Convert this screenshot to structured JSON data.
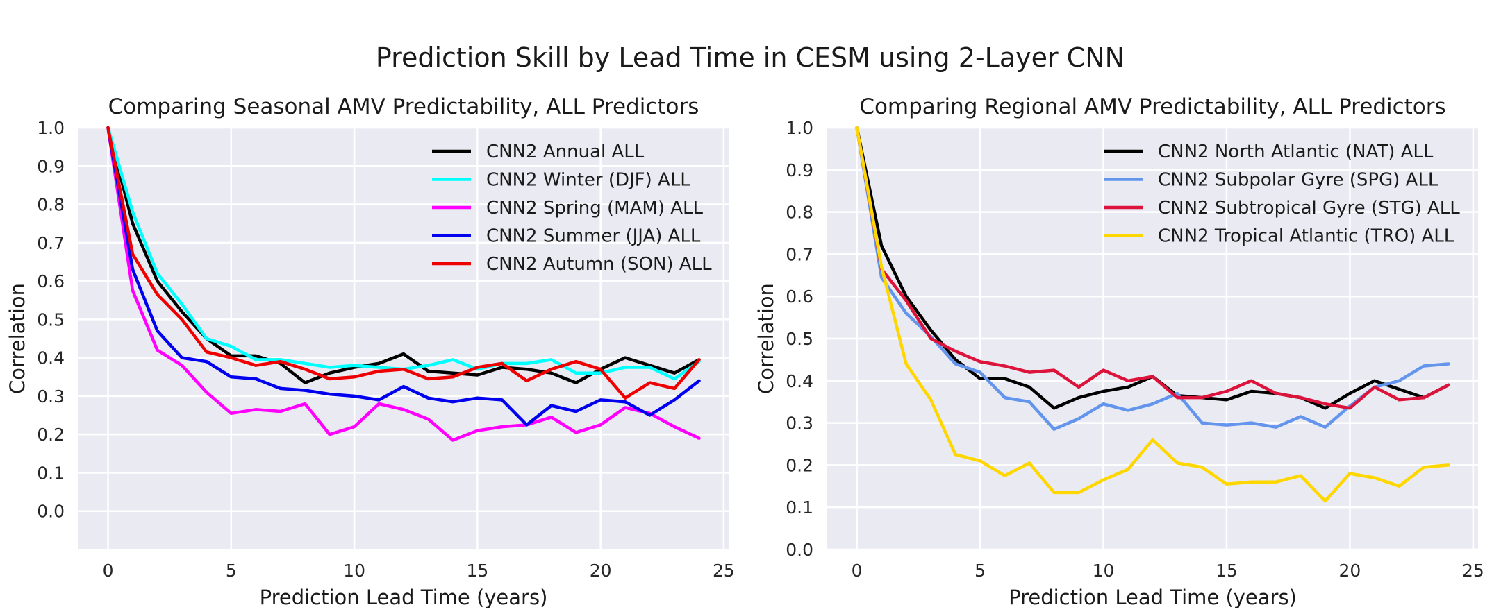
{
  "figure": {
    "suptitle": "Prediction Skill by Lead Time in CESM using 2-Layer CNN"
  },
  "chart_data": [
    {
      "type": "line",
      "title": "Comparing Seasonal AMV Predictability, ALL Predictors",
      "xlabel": "Prediction Lead Time (years)",
      "ylabel": "Correlation",
      "xlim": [
        -1.2,
        25.2
      ],
      "ylim": [
        -0.1,
        1.0
      ],
      "xticks": [
        0,
        5,
        10,
        15,
        20,
        25
      ],
      "yticks": [
        0.0,
        0.1,
        0.2,
        0.3,
        0.4,
        0.5,
        0.6,
        0.7,
        0.8,
        0.9,
        1.0
      ],
      "grid": true,
      "legend_position": "upper-right",
      "x": [
        0,
        1,
        2,
        3,
        4,
        5,
        6,
        7,
        8,
        9,
        10,
        11,
        12,
        13,
        14,
        15,
        16,
        17,
        18,
        19,
        20,
        21,
        22,
        23,
        24
      ],
      "series": [
        {
          "name": "CNN2 Annual ALL",
          "color": "#000000",
          "values": [
            1.0,
            0.75,
            0.6,
            0.52,
            0.45,
            0.405,
            0.405,
            0.385,
            0.335,
            0.36,
            0.375,
            0.385,
            0.41,
            0.365,
            0.36,
            0.355,
            0.375,
            0.37,
            0.36,
            0.335,
            0.37,
            0.4,
            0.38,
            0.36,
            0.395
          ]
        },
        {
          "name": "CNN2 Winter (DJF) ALL",
          "color": "#00ffff",
          "values": [
            1.0,
            0.78,
            0.62,
            0.54,
            0.45,
            0.43,
            0.395,
            0.395,
            0.385,
            0.375,
            0.38,
            0.375,
            0.37,
            0.38,
            0.395,
            0.37,
            0.385,
            0.385,
            0.395,
            0.36,
            0.36,
            0.375,
            0.375,
            0.345,
            0.39
          ]
        },
        {
          "name": "CNN2 Spring (MAM) ALL",
          "color": "#ff00ff",
          "values": [
            1.0,
            0.575,
            0.42,
            0.38,
            0.31,
            0.255,
            0.265,
            0.26,
            0.28,
            0.2,
            0.22,
            0.28,
            0.265,
            0.24,
            0.185,
            0.21,
            0.22,
            0.225,
            0.245,
            0.205,
            0.225,
            0.27,
            0.255,
            0.22,
            0.19
          ]
        },
        {
          "name": "CNN2 Summer (JJA) ALL",
          "color": "#0000ee",
          "values": [
            1.0,
            0.63,
            0.47,
            0.4,
            0.39,
            0.35,
            0.345,
            0.32,
            0.315,
            0.305,
            0.3,
            0.29,
            0.325,
            0.295,
            0.285,
            0.295,
            0.29,
            0.225,
            0.275,
            0.26,
            0.29,
            0.285,
            0.25,
            0.29,
            0.34
          ]
        },
        {
          "name": "CNN2 Autumn (SON) ALL",
          "color": "#ee0000",
          "values": [
            1.0,
            0.67,
            0.565,
            0.5,
            0.415,
            0.4,
            0.38,
            0.39,
            0.37,
            0.345,
            0.35,
            0.365,
            0.37,
            0.345,
            0.35,
            0.375,
            0.385,
            0.34,
            0.37,
            0.39,
            0.37,
            0.295,
            0.335,
            0.32,
            0.395
          ]
        }
      ]
    },
    {
      "type": "line",
      "title": "Comparing Regional AMV Predictability, ALL Predictors",
      "xlabel": "Prediction Lead Time (years)",
      "ylabel": "Correlation",
      "xlim": [
        -1.2,
        25.2
      ],
      "ylim": [
        0.0,
        1.0
      ],
      "xticks": [
        0,
        5,
        10,
        15,
        20,
        25
      ],
      "yticks": [
        0.0,
        0.1,
        0.2,
        0.3,
        0.4,
        0.5,
        0.6,
        0.7,
        0.8,
        0.9,
        1.0
      ],
      "grid": true,
      "legend_position": "upper-right",
      "x": [
        0,
        1,
        2,
        3,
        4,
        5,
        6,
        7,
        8,
        9,
        10,
        11,
        12,
        13,
        14,
        15,
        16,
        17,
        18,
        19,
        20,
        21,
        22,
        23,
        24
      ],
      "series": [
        {
          "name": "CNN2 North Atlantic (NAT) ALL",
          "color": "#000000",
          "values": [
            1.0,
            0.72,
            0.6,
            0.52,
            0.45,
            0.405,
            0.405,
            0.385,
            0.335,
            0.36,
            0.375,
            0.385,
            0.41,
            0.365,
            0.36,
            0.355,
            0.375,
            0.37,
            0.36,
            0.335,
            0.37,
            0.4,
            0.38,
            0.36,
            0.39
          ]
        },
        {
          "name": "CNN2 Subpolar Gyre (SPG) ALL",
          "color": "#6495ed",
          "values": [
            1.0,
            0.645,
            0.56,
            0.505,
            0.44,
            0.42,
            0.36,
            0.35,
            0.285,
            0.31,
            0.345,
            0.33,
            0.345,
            0.37,
            0.3,
            0.295,
            0.3,
            0.29,
            0.315,
            0.29,
            0.34,
            0.385,
            0.4,
            0.435,
            0.44
          ]
        },
        {
          "name": "CNN2 Subtropical Gyre (STG) ALL",
          "color": "#dc143c",
          "values": [
            1.0,
            0.665,
            0.59,
            0.5,
            0.47,
            0.445,
            0.435,
            0.42,
            0.425,
            0.385,
            0.425,
            0.4,
            0.41,
            0.36,
            0.36,
            0.375,
            0.4,
            0.37,
            0.36,
            0.345,
            0.335,
            0.385,
            0.355,
            0.36,
            0.39
          ]
        },
        {
          "name": "CNN2 Tropical Atlantic (TRO) ALL",
          "color": "#ffd700",
          "values": [
            1.0,
            0.67,
            0.44,
            0.355,
            0.225,
            0.21,
            0.175,
            0.205,
            0.135,
            0.135,
            0.165,
            0.19,
            0.26,
            0.205,
            0.195,
            0.155,
            0.16,
            0.16,
            0.175,
            0.115,
            0.18,
            0.17,
            0.15,
            0.195,
            0.2
          ]
        }
      ]
    }
  ]
}
